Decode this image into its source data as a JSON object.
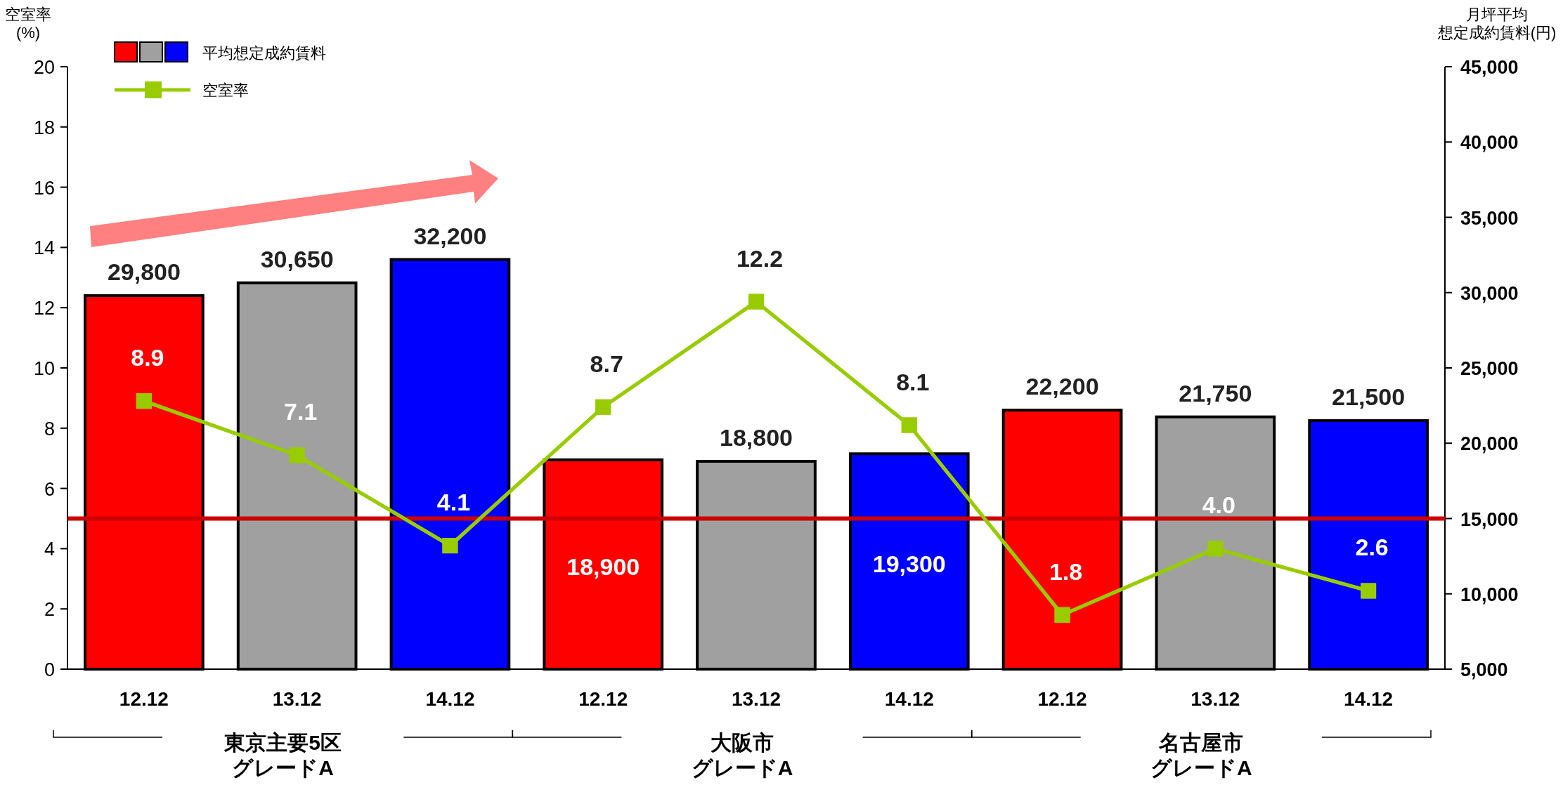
{
  "chart_data": {
    "type": "bar",
    "categories": [
      "12.12",
      "13.12",
      "14.12",
      "12.12",
      "13.12",
      "14.12",
      "12.12",
      "13.12",
      "14.12"
    ],
    "series": [
      {
        "name": "平均想定成約賃料",
        "axis": "y2",
        "colors": [
          "#ff0000",
          "#a0a0a0",
          "#0000ff",
          "#ff0000",
          "#a0a0a0",
          "#0000ff",
          "#ff0000",
          "#a0a0a0",
          "#0000ff"
        ],
        "values": [
          29800,
          30650,
          32200,
          18900,
          18800,
          19300,
          22200,
          21750,
          21500
        ],
        "value_labels": [
          "29,800",
          "30,650",
          "32,200",
          "18,900",
          "18,800",
          "19,300",
          "22,200",
          "21,750",
          "21,500"
        ]
      },
      {
        "name": "空室率",
        "type": "line",
        "color": "#99cc00",
        "marker": "square",
        "values": [
          8.9,
          7.1,
          4.1,
          8.7,
          12.2,
          8.1,
          1.8,
          4.0,
          2.6
        ],
        "value_labels": [
          "8.9",
          "7.1",
          "4.1",
          "8.7",
          "12.2",
          "8.1",
          "1.8",
          "4.0",
          "2.6"
        ]
      }
    ],
    "ylabel": "空室率\n(%)",
    "y2label": "月坪平均想定成約賃料(円)",
    "ylim": [
      0,
      20
    ],
    "yticks": [
      0,
      2,
      4,
      6,
      8,
      10,
      12,
      14,
      16,
      18,
      20
    ],
    "y2lim": [
      5000,
      45000
    ],
    "y2ticks": [
      {
        "value": 5000,
        "label": "5,000"
      },
      {
        "value": 10000,
        "label": "10,000"
      },
      {
        "value": 15000,
        "label": "15,000"
      },
      {
        "value": 20000,
        "label": "20,000"
      },
      {
        "value": 25000,
        "label": "25,000"
      },
      {
        "value": 30000,
        "label": "30,000"
      },
      {
        "value": 35000,
        "label": "35,000"
      },
      {
        "value": 40000,
        "label": "40,000"
      },
      {
        "value": 45000,
        "label": "45,000"
      }
    ],
    "ref_lines": [
      {
        "axis": "y",
        "value": 5,
        "color": "#cc0000"
      }
    ],
    "annotations": [
      "東京主要5区グレードA",
      "大阪市グレードA",
      "名古屋市グレードA"
    ],
    "legend": "top left",
    "grid": false
  }
}
